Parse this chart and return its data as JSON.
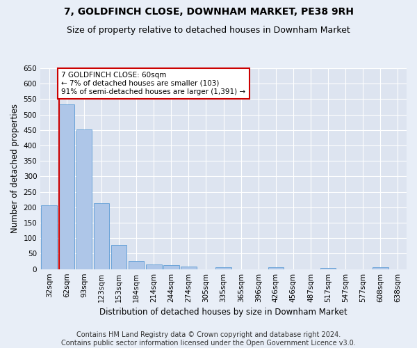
{
  "title": "7, GOLDFINCH CLOSE, DOWNHAM MARKET, PE38 9RH",
  "subtitle": "Size of property relative to detached houses in Downham Market",
  "xlabel": "Distribution of detached houses by size in Downham Market",
  "ylabel": "Number of detached properties",
  "footer_line1": "Contains HM Land Registry data © Crown copyright and database right 2024.",
  "footer_line2": "Contains public sector information licensed under the Open Government Licence v3.0.",
  "categories": [
    "32sqm",
    "62sqm",
    "93sqm",
    "123sqm",
    "153sqm",
    "184sqm",
    "214sqm",
    "244sqm",
    "274sqm",
    "305sqm",
    "335sqm",
    "365sqm",
    "396sqm",
    "426sqm",
    "456sqm",
    "487sqm",
    "517sqm",
    "547sqm",
    "577sqm",
    "608sqm",
    "638sqm"
  ],
  "values": [
    207,
    532,
    451,
    213,
    78,
    26,
    16,
    12,
    8,
    0,
    6,
    0,
    0,
    5,
    0,
    0,
    4,
    0,
    0,
    5,
    0
  ],
  "bar_color": "#aec6e8",
  "bar_edge_color": "#5b9bd5",
  "vline_color": "#cc0000",
  "annotation_text": "7 GOLDFINCH CLOSE: 60sqm\n← 7% of detached houses are smaller (103)\n91% of semi-detached houses are larger (1,391) →",
  "annotation_box_color": "white",
  "annotation_box_edge": "#cc0000",
  "ylim": [
    0,
    650
  ],
  "yticks": [
    0,
    50,
    100,
    150,
    200,
    250,
    300,
    350,
    400,
    450,
    500,
    550,
    600,
    650
  ],
  "bg_color": "#e8eef7",
  "plot_bg_color": "#dde4f0",
  "title_fontsize": 10,
  "subtitle_fontsize": 9,
  "axis_label_fontsize": 8.5,
  "tick_fontsize": 7.5,
  "footer_fontsize": 7
}
